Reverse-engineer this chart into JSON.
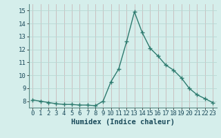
{
  "x": [
    0,
    1,
    2,
    3,
    4,
    5,
    6,
    7,
    8,
    9,
    10,
    11,
    12,
    13,
    14,
    15,
    16,
    17,
    18,
    19,
    20,
    21,
    22,
    23
  ],
  "y": [
    8.1,
    8.0,
    7.9,
    7.8,
    7.75,
    7.75,
    7.7,
    7.7,
    7.65,
    8.0,
    9.5,
    10.5,
    12.6,
    14.9,
    13.3,
    12.1,
    11.5,
    10.8,
    10.4,
    9.8,
    9.0,
    8.5,
    8.2,
    7.9
  ],
  "line_color": "#2d7a6e",
  "marker": "+",
  "markersize": 4,
  "bg_color": "#d5eeeb",
  "grid_color_v": "#c8b8b8",
  "grid_color_h": "#b8d8d4",
  "xlim": [
    -0.5,
    23.5
  ],
  "ylim": [
    7.5,
    15.5
  ],
  "yticks": [
    8,
    9,
    10,
    11,
    12,
    13,
    14,
    15
  ],
  "xtick_labels": [
    "0",
    "1",
    "2",
    "3",
    "4",
    "5",
    "6",
    "7",
    "8",
    "9",
    "10",
    "11",
    "12",
    "13",
    "14",
    "15",
    "16",
    "17",
    "18",
    "19",
    "20",
    "21",
    "22",
    "23"
  ],
  "xlabel": "Humidex (Indice chaleur)",
  "xlabel_fontsize": 7.5,
  "tick_fontsize": 6.5,
  "linewidth": 1.0,
  "text_color": "#1a4a5a"
}
